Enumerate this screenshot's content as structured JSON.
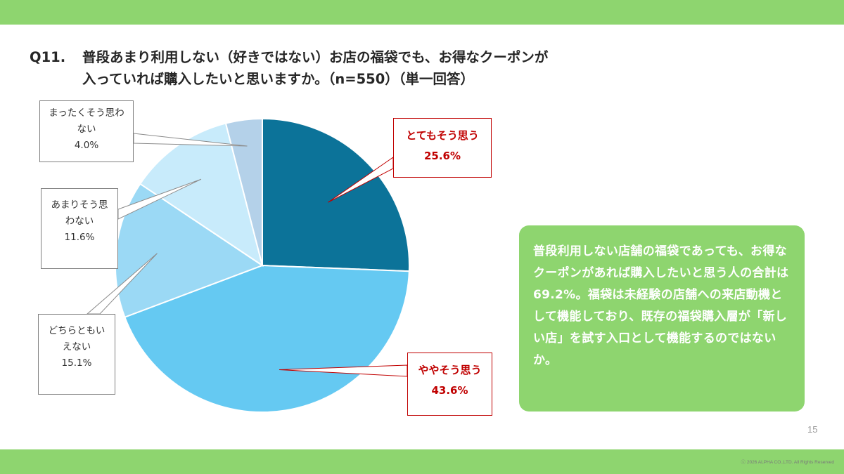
{
  "colors": {
    "band": "#8ed56f",
    "note_bg": "#8ed56f",
    "slice_colors": [
      "#0c7399",
      "#65c9f2",
      "#9bd9f5",
      "#c8ebfb",
      "#b4d1e9"
    ],
    "leader": "#8c8c8c",
    "highlight": "#c00000"
  },
  "question": {
    "number": "Q11.",
    "line1": "普段あまり利用しない（好きではない）お店の福袋でも、お得なクーポンが",
    "line2": "入っていれば購入したいと思いますか。（n=550）（単一回答）"
  },
  "chart_data": {
    "type": "pie",
    "start_angle": "12 o'clock",
    "direction": "clockwise",
    "slices": [
      {
        "label_lines": [
          "とてもそう思う"
        ],
        "value": 25.6,
        "display": "25.6%",
        "color": "#0c7399",
        "highlight": true
      },
      {
        "label_lines": [
          "ややそう思う"
        ],
        "value": 43.6,
        "display": "43.6%",
        "color": "#65c9f2",
        "highlight": true
      },
      {
        "label_lines": [
          "どちらともい",
          "えない"
        ],
        "value": 15.1,
        "display": "15.1%",
        "color": "#9bd9f5",
        "highlight": false
      },
      {
        "label_lines": [
          "あまりそう思",
          "わない"
        ],
        "value": 11.6,
        "display": "11.6%",
        "color": "#c8ebfb",
        "highlight": false
      },
      {
        "label_lines": [
          "まったくそう思わ",
          "ない"
        ],
        "value": 4.0,
        "display": "4.0%",
        "color": "#b4d1e9",
        "highlight": false
      }
    ]
  },
  "note": {
    "text": "普段利用しない店舗の福袋であっても、お得なクーポンがあれば購入したいと思う人の合計は69.2%。福袋は未経験の店舗への来店動機として機能しており、既存の福袋購入層が「新しい店」を試す入口として機能するのではないか。"
  },
  "footer": {
    "page_number": "15",
    "copyright": "ⓒ 2026 ALPHA CO.,LTD. All Rights Reserved"
  }
}
